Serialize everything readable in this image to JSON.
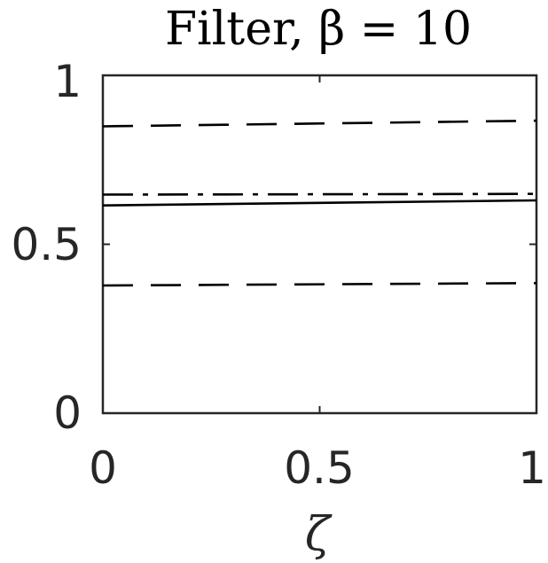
{
  "chart_data": {
    "type": "line",
    "title": "Filter, β = 10",
    "xlabel": "ζ",
    "ylabel": "",
    "xlim": [
      0,
      1
    ],
    "ylim": [
      0,
      1
    ],
    "xticks": [
      "0",
      "0.5",
      "1"
    ],
    "yticks": [
      "0",
      "0.5",
      "1"
    ],
    "grid": false,
    "series": [
      {
        "style": "dashed",
        "x": [
          0,
          1
        ],
        "y": [
          0.849,
          0.866
        ]
      },
      {
        "style": "dashdot",
        "x": [
          0,
          1
        ],
        "y": [
          0.647,
          0.649
        ]
      },
      {
        "style": "solid",
        "x": [
          0,
          1
        ],
        "y": [
          0.615,
          0.63
        ]
      },
      {
        "style": "dashed",
        "x": [
          0,
          1
        ],
        "y": [
          0.378,
          0.385
        ]
      }
    ]
  }
}
